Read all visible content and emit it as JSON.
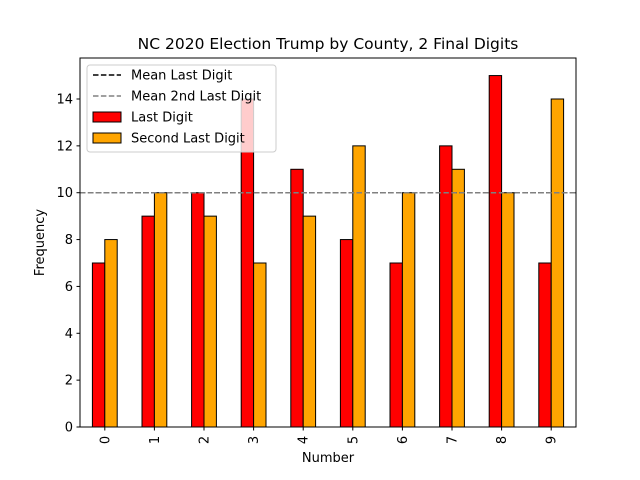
{
  "chart_data": {
    "type": "bar",
    "title": "NC 2020 Election Trump by County, 2 Final Digits",
    "xlabel": "Number",
    "ylabel": "Frequency",
    "categories": [
      "0",
      "1",
      "2",
      "3",
      "4",
      "5",
      "6",
      "7",
      "8",
      "9"
    ],
    "series": [
      {
        "name": "Last Digit",
        "values": [
          7,
          9,
          10,
          14,
          11,
          8,
          7,
          12,
          15,
          7
        ],
        "color": "#ff0000"
      },
      {
        "name": "Second Last Digit",
        "values": [
          8,
          10,
          9,
          7,
          9,
          12,
          10,
          11,
          10,
          14
        ],
        "color": "#ffa500"
      }
    ],
    "reference_lines": [
      {
        "name": "Mean Last Digit",
        "value": 10,
        "color": "#000000",
        "style": "dashed"
      },
      {
        "name": "Mean 2nd Last Digit",
        "value": 10,
        "color": "#808080",
        "style": "dashed"
      }
    ],
    "ylim": [
      0,
      15.75
    ],
    "yticks": [
      0,
      2,
      4,
      6,
      8,
      10,
      12,
      14
    ],
    "xtick_rotation": "vertical",
    "legend": "top-left",
    "grid": false
  }
}
